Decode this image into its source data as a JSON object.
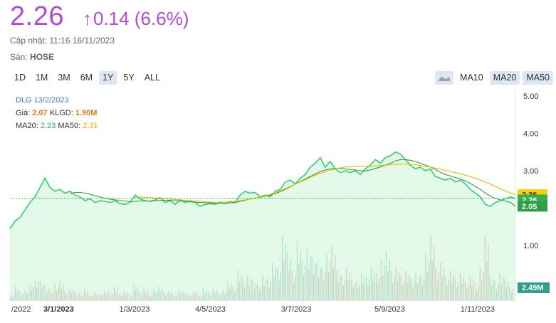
{
  "quote": {
    "price": "2.26",
    "arrow": "↑",
    "change": "0.14 (6.6%)",
    "updated_label": "Cập nhật:",
    "updated_value": "11:16 16/11/2023",
    "exchange_label": "Sàn:",
    "exchange_value": "HOSE"
  },
  "ranges": [
    {
      "label": "1D",
      "active": false
    },
    {
      "label": "1M",
      "active": false
    },
    {
      "label": "3M",
      "active": false
    },
    {
      "label": "6M",
      "active": false
    },
    {
      "label": "1Y",
      "active": true
    },
    {
      "label": "5Y",
      "active": false
    },
    {
      "label": "ALL",
      "active": false
    }
  ],
  "ma_buttons": {
    "icon": "area-chart-icon",
    "ma10": "MA10",
    "ma20": "MA20",
    "ma50": "MA50"
  },
  "tooltip": {
    "symbol_date": "DLG 13/2/2023",
    "price_label": "Giá:",
    "price_value": "2.07",
    "volume_label": "KLGD:",
    "volume_value": "1.90M",
    "ma20_label": "MA20:",
    "ma20_value": "2.23",
    "ma50_label": "MA50:",
    "ma50_value": "2.31"
  },
  "colors": {
    "price_text": "#b14bd6",
    "price_line": "#2fd16a",
    "price_fill": "#d8f5e0",
    "ma20": "#2f9e44",
    "ma50": "#f0b400",
    "vol_up": "#3aa89a",
    "vol_down": "#e0565a",
    "tag_ma50": "#ffd000",
    "tag_price": "#2fb24f",
    "tag_ma20": "#2f9e44",
    "tag_volume": "#2f9e8c"
  },
  "chart_data": {
    "type": "line",
    "y_ticks": [
      "5.00",
      "4.00",
      "3.00",
      "1.00"
    ],
    "ylim": [
      0,
      5
    ],
    "x_ticks": [
      "/2022",
      "3/1/2023",
      "1/3/2023",
      "4/5/2023",
      "3/7/2023",
      "5/9/2023",
      "1/11/2023"
    ],
    "x_ticks_bold": [
      false,
      true,
      false,
      false,
      false,
      false,
      false
    ],
    "tags": {
      "ma50": "2.36",
      "price": "2.26",
      "ma20": "2.05",
      "volume": "2.49M"
    },
    "series": [
      {
        "name": "Giá",
        "values": [
          1.45,
          1.65,
          1.75,
          1.95,
          2.15,
          2.3,
          2.55,
          2.8,
          2.55,
          2.45,
          2.5,
          2.4,
          2.45,
          2.35,
          2.3,
          2.2,
          2.25,
          2.15,
          2.2,
          2.18,
          2.15,
          2.2,
          2.12,
          2.1,
          2.15,
          2.35,
          2.25,
          2.2,
          2.18,
          2.22,
          2.28,
          2.15,
          2.2,
          2.1,
          2.22,
          2.15,
          2.18,
          2.15,
          2.05,
          2.1,
          2.12,
          2.1,
          2.15,
          2.12,
          2.18,
          2.15,
          2.35,
          2.45,
          2.4,
          2.42,
          2.3,
          2.35,
          2.3,
          2.45,
          2.5,
          2.7,
          2.75,
          2.65,
          2.8,
          2.9,
          3.1,
          3.2,
          3.35,
          3.1,
          3.25,
          3.05,
          2.95,
          3.0,
          2.95,
          3.0,
          2.9,
          3.05,
          3.15,
          3.3,
          3.2,
          3.35,
          3.4,
          3.5,
          3.45,
          3.3,
          3.15,
          3.05,
          3.1,
          3.0,
          3.05,
          2.85,
          2.8,
          2.75,
          2.8,
          2.7,
          2.75,
          2.65,
          2.5,
          2.4,
          2.3,
          2.1,
          2.05,
          2.15,
          2.2,
          2.25,
          2.3,
          2.26
        ]
      },
      {
        "name": "MA20",
        "values": [
          null,
          null,
          null,
          null,
          null,
          null,
          null,
          null,
          null,
          null,
          null,
          null,
          2.38,
          2.42,
          2.42,
          2.4,
          2.37,
          2.33,
          2.3,
          2.26,
          2.24,
          2.22,
          2.2,
          2.19,
          2.17,
          2.18,
          2.19,
          2.19,
          2.19,
          2.2,
          2.21,
          2.21,
          2.21,
          2.2,
          2.19,
          2.18,
          2.17,
          2.16,
          2.15,
          2.14,
          2.14,
          2.13,
          2.13,
          2.13,
          2.14,
          2.15,
          2.18,
          2.21,
          2.24,
          2.27,
          2.29,
          2.32,
          2.35,
          2.39,
          2.44,
          2.5,
          2.57,
          2.64,
          2.71,
          2.78,
          2.85,
          2.91,
          2.98,
          3.02,
          3.05,
          3.06,
          3.06,
          3.05,
          3.03,
          3.02,
          3.0,
          3.0,
          3.02,
          3.06,
          3.1,
          3.15,
          3.2,
          3.26,
          3.3,
          3.3,
          3.28,
          3.25,
          3.2,
          3.15,
          3.1,
          3.03,
          2.96,
          2.9,
          2.86,
          2.82,
          2.78,
          2.73,
          2.66,
          2.58,
          2.5,
          2.4,
          2.32,
          2.26,
          2.22,
          2.19,
          2.15,
          2.05
        ]
      },
      {
        "name": "MA50",
        "values": [
          null,
          null,
          null,
          null,
          null,
          null,
          null,
          null,
          null,
          null,
          null,
          null,
          null,
          null,
          null,
          null,
          null,
          null,
          null,
          null,
          null,
          null,
          null,
          null,
          null,
          2.3,
          2.3,
          2.29,
          2.28,
          2.27,
          2.26,
          2.25,
          2.24,
          2.23,
          2.22,
          2.21,
          2.2,
          2.19,
          2.18,
          2.17,
          2.16,
          2.16,
          2.16,
          2.16,
          2.17,
          2.18,
          2.2,
          2.22,
          2.24,
          2.27,
          2.3,
          2.33,
          2.37,
          2.41,
          2.46,
          2.52,
          2.58,
          2.64,
          2.7,
          2.76,
          2.82,
          2.88,
          2.93,
          2.98,
          3.02,
          3.05,
          3.08,
          3.1,
          3.11,
          3.12,
          3.12,
          3.12,
          3.12,
          3.13,
          3.14,
          3.15,
          3.16,
          3.17,
          3.18,
          3.18,
          3.17,
          3.16,
          3.14,
          3.12,
          3.1,
          3.07,
          3.04,
          3.01,
          2.98,
          2.95,
          2.92,
          2.88,
          2.84,
          2.8,
          2.75,
          2.7,
          2.64,
          2.58,
          2.52,
          2.46,
          2.41,
          2.36
        ]
      }
    ],
    "volume": [
      0.1,
      0.25,
      0.15,
      0.2,
      0.3,
      0.4,
      0.35,
      0.25,
      0.2,
      0.3,
      0.35,
      0.18,
      0.22,
      0.15,
      0.12,
      0.2,
      0.1,
      0.15,
      0.12,
      0.18,
      0.14,
      0.25,
      0.12,
      0.18,
      0.1,
      0.3,
      0.15,
      0.22,
      0.12,
      0.2,
      0.25,
      0.15,
      0.18,
      0.1,
      0.2,
      0.15,
      0.12,
      0.18,
      0.1,
      0.2,
      0.15,
      0.22,
      0.15,
      0.2,
      0.35,
      0.25,
      0.55,
      0.4,
      0.45,
      0.35,
      0.3,
      0.45,
      0.4,
      0.7,
      0.6,
      1.2,
      0.9,
      0.55,
      1.1,
      0.75,
      0.95,
      0.8,
      0.7,
      0.6,
      0.85,
      1.0,
      0.55,
      0.45,
      0.6,
      0.4,
      0.35,
      0.5,
      0.45,
      0.6,
      0.5,
      0.75,
      0.9,
      0.55,
      0.6,
      0.45,
      0.55,
      0.4,
      0.5,
      0.45,
      0.85,
      1.2,
      0.6,
      0.7,
      0.45,
      0.55,
      0.4,
      0.5,
      0.35,
      0.45,
      0.3,
      0.6,
      1.2,
      0.45,
      0.35,
      0.5,
      0.4,
      0.25
    ]
  }
}
